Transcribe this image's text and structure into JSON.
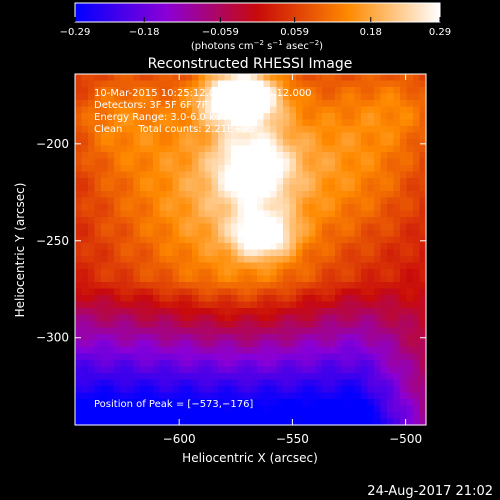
{
  "chart_data": {
    "type": "heatmap",
    "title": "Reconstructed RHESSI Image",
    "xlabel": "Heliocentric X (arcsec)",
    "ylabel": "Heliocentric Y (arcsec)",
    "xlim": [
      -646,
      -491
    ],
    "ylim": [
      -345,
      -164
    ],
    "x_ticks": [
      -600,
      -550,
      -500
    ],
    "x_tick_labels": [
      "−600",
      "−550",
      "−500"
    ],
    "y_ticks": [
      -200,
      -250,
      -300
    ],
    "y_tick_labels": [
      "−200",
      "−250",
      "−300"
    ],
    "colorbar": {
      "range": [
        -0.29,
        0.29
      ],
      "ticks": [
        -0.29,
        -0.18,
        -0.059,
        0.059,
        0.18,
        0.29
      ],
      "tick_labels": [
        "−0.29",
        "−0.18",
        "−0.059",
        "0.059",
        "0.18",
        "0.29"
      ],
      "unit_text": "(photons cm",
      "unit_sup1": "−2",
      "unit_mid": " s",
      "unit_sup2": "−1",
      "unit_mid2": " asec",
      "unit_sup3": "−2",
      "unit_end": ")"
    },
    "info_lines": [
      "10-Mar-2015 10:25:12.000 to 10:36:12.000",
      "Detectors: 3F 5F 6F 7F 8F 9F, Att 0",
      "Energy Range: 3.0-6.0 keV",
      "Clean     Total counts: 2.21E+05"
    ],
    "peak_text": "Position of Peak = [−573,−176]",
    "peak": {
      "x": -573,
      "y": -176,
      "value": 0.29
    },
    "sources": [
      {
        "x": -573,
        "y": -176,
        "sx": 11,
        "sy": 9,
        "amp": 0.36
      },
      {
        "x": -567,
        "y": -212,
        "sx": 11,
        "sy": 13,
        "amp": 0.18
      },
      {
        "x": -563,
        "y": -247,
        "sx": 9,
        "sy": 8,
        "amp": 0.2
      },
      {
        "x": -568,
        "y": -230,
        "sx": 26,
        "sy": 48,
        "amp": 0.15
      },
      {
        "x": -610,
        "y": -220,
        "sx": 30,
        "sy": 45,
        "amp": 0.1
      },
      {
        "x": -520,
        "y": -205,
        "sx": 25,
        "sy": 35,
        "amp": 0.12
      },
      {
        "x": -630,
        "y": -185,
        "sx": 16,
        "sy": 18,
        "amp": 0.07
      },
      {
        "x": -500,
        "y": -180,
        "sx": 14,
        "sy": 15,
        "amp": 0.06
      }
    ],
    "background_min": -0.29,
    "grid": false
  },
  "footer": {
    "date_text": "24-Aug-2017 21:02"
  }
}
